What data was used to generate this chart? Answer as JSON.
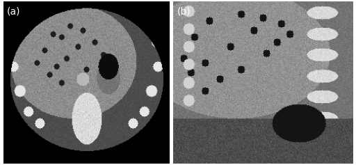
{
  "panel_a_label": "(a)",
  "panel_b_label": "(b)",
  "label_fontsize": 10,
  "label_color": "white",
  "background_color": "#ffffff",
  "fig_width": 5.12,
  "fig_height": 2.37
}
